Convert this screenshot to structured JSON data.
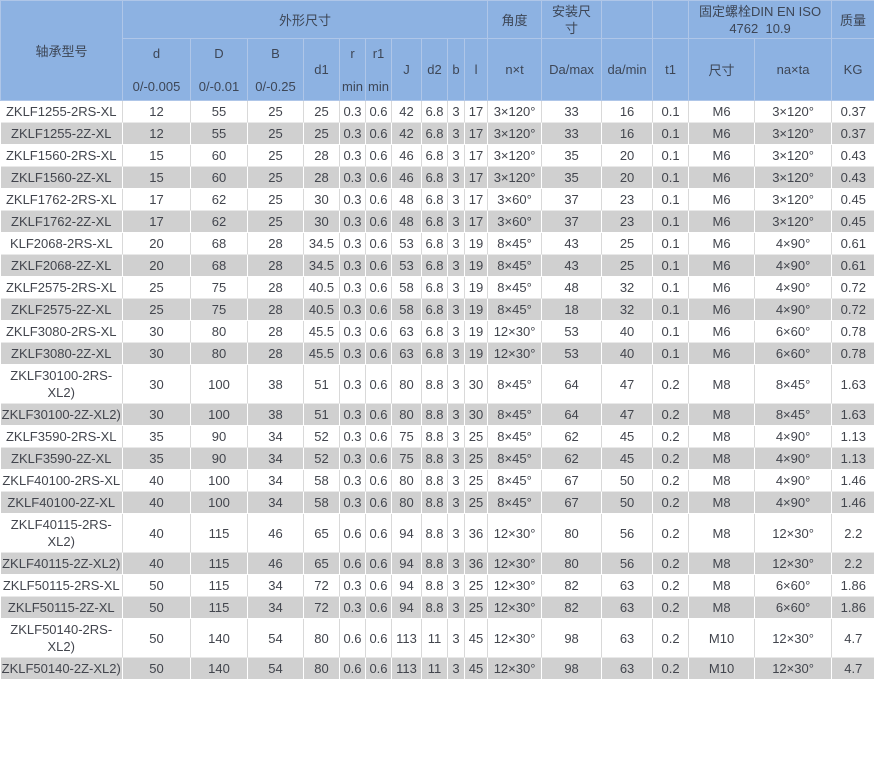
{
  "colors": {
    "header_bg": "#8DB2E2",
    "header_border": "#AFC6E8",
    "row_alt_bg": "#D0D0D0",
    "text": "#42454D"
  },
  "header": {
    "model": "轴承型号",
    "dims_group": "外形尺寸",
    "angle_group": "角度",
    "mount_group": "安装尺寸",
    "bolt_group_line1": "固定螺栓DIN EN ISO",
    "bolt_group_line2": "4762  10.9",
    "mass_group": "质量",
    "d": "d",
    "d_tol": "0/-0.005",
    "D": "D",
    "D_tol": "0/-0.01",
    "B": "B",
    "B_tol": "0/-0.25",
    "d1": "d1",
    "r": "r",
    "r_min": "min",
    "r1": "r1",
    "r1_min": "min",
    "J": "J",
    "d2": "d2",
    "b": "b",
    "l": "l",
    "nxt": "n×t",
    "Da_max": "Da/max",
    "da_min": "da/min",
    "t1": "t1",
    "size": "尺寸",
    "naxta": "na×ta",
    "kg": "KG"
  },
  "rows": [
    {
      "model": "ZKLF1255-2RS-XL",
      "d": "12",
      "D": "55",
      "B": "25",
      "d1": "25",
      "r": "0.3",
      "r1": "0.6",
      "J": "42",
      "d2": "6.8",
      "b": "3",
      "l": "17",
      "nxt": "3×120°",
      "Da_max": "33",
      "da_min": "16",
      "t1": "0.1",
      "size": "M6",
      "naxta": "3×120°",
      "kg": "0.37"
    },
    {
      "model": "ZKLF1255-2Z-XL",
      "d": "12",
      "D": "55",
      "B": "25",
      "d1": "25",
      "r": "0.3",
      "r1": "0.6",
      "J": "42",
      "d2": "6.8",
      "b": "3",
      "l": "17",
      "nxt": "3×120°",
      "Da_max": "33",
      "da_min": "16",
      "t1": "0.1",
      "size": "M6",
      "naxta": "3×120°",
      "kg": "0.37"
    },
    {
      "model": "ZKLF1560-2RS-XL",
      "d": "15",
      "D": "60",
      "B": "25",
      "d1": "28",
      "r": "0.3",
      "r1": "0.6",
      "J": "46",
      "d2": "6.8",
      "b": "3",
      "l": "17",
      "nxt": "3×120°",
      "Da_max": "35",
      "da_min": "20",
      "t1": "0.1",
      "size": "M6",
      "naxta": "3×120°",
      "kg": "0.43"
    },
    {
      "model": "ZKLF1560-2Z-XL",
      "d": "15",
      "D": "60",
      "B": "25",
      "d1": "28",
      "r": "0.3",
      "r1": "0.6",
      "J": "46",
      "d2": "6.8",
      "b": "3",
      "l": "17",
      "nxt": "3×120°",
      "Da_max": "35",
      "da_min": "20",
      "t1": "0.1",
      "size": "M6",
      "naxta": "3×120°",
      "kg": "0.43"
    },
    {
      "model": "ZKLF1762-2RS-XL",
      "d": "17",
      "D": "62",
      "B": "25",
      "d1": "30",
      "r": "0.3",
      "r1": "0.6",
      "J": "48",
      "d2": "6.8",
      "b": "3",
      "l": "17",
      "nxt": "3×60°",
      "Da_max": "37",
      "da_min": "23",
      "t1": "0.1",
      "size": "M6",
      "naxta": "3×120°",
      "kg": "0.45"
    },
    {
      "model": "ZKLF1762-2Z-XL",
      "d": "17",
      "D": "62",
      "B": "25",
      "d1": "30",
      "r": "0.3",
      "r1": "0.6",
      "J": "48",
      "d2": "6.8",
      "b": "3",
      "l": "17",
      "nxt": "3×60°",
      "Da_max": "37",
      "da_min": "23",
      "t1": "0.1",
      "size": "M6",
      "naxta": "3×120°",
      "kg": "0.45"
    },
    {
      "model": "KLF2068-2RS-XL",
      "d": "20",
      "D": "68",
      "B": "28",
      "d1": "34.5",
      "r": "0.3",
      "r1": "0.6",
      "J": "53",
      "d2": "6.8",
      "b": "3",
      "l": "19",
      "nxt": "8×45°",
      "Da_max": "43",
      "da_min": "25",
      "t1": "0.1",
      "size": "M6",
      "naxta": "4×90°",
      "kg": "0.61"
    },
    {
      "model": "ZKLF2068-2Z-XL",
      "d": "20",
      "D": "68",
      "B": "28",
      "d1": "34.5",
      "r": "0.3",
      "r1": "0.6",
      "J": "53",
      "d2": "6.8",
      "b": "3",
      "l": "19",
      "nxt": "8×45°",
      "Da_max": "43",
      "da_min": "25",
      "t1": "0.1",
      "size": "M6",
      "naxta": "4×90°",
      "kg": "0.61"
    },
    {
      "model": "ZKLF2575-2RS-XL",
      "d": "25",
      "D": "75",
      "B": "28",
      "d1": "40.5",
      "r": "0.3",
      "r1": "0.6",
      "J": "58",
      "d2": "6.8",
      "b": "3",
      "l": "19",
      "nxt": "8×45°",
      "Da_max": "48",
      "da_min": "32",
      "t1": "0.1",
      "size": "M6",
      "naxta": "4×90°",
      "kg": "0.72"
    },
    {
      "model": "ZKLF2575-2Z-XL",
      "d": "25",
      "D": "75",
      "B": "28",
      "d1": "40.5",
      "r": "0.3",
      "r1": "0.6",
      "J": "58",
      "d2": "6.8",
      "b": "3",
      "l": "19",
      "nxt": "8×45°",
      "Da_max": "18",
      "da_min": "32",
      "t1": "0.1",
      "size": "M6",
      "naxta": "4×90°",
      "kg": "0.72"
    },
    {
      "model": "ZKLF3080-2RS-XL",
      "d": "30",
      "D": "80",
      "B": "28",
      "d1": "45.5",
      "r": "0.3",
      "r1": "0.6",
      "J": "63",
      "d2": "6.8",
      "b": "3",
      "l": "19",
      "nxt": "12×30°",
      "Da_max": "53",
      "da_min": "40",
      "t1": "0.1",
      "size": "M6",
      "naxta": "6×60°",
      "kg": "0.78"
    },
    {
      "model": "ZKLF3080-2Z-XL",
      "d": "30",
      "D": "80",
      "B": "28",
      "d1": "45.5",
      "r": "0.3",
      "r1": "0.6",
      "J": "63",
      "d2": "6.8",
      "b": "3",
      "l": "19",
      "nxt": "12×30°",
      "Da_max": "53",
      "da_min": "40",
      "t1": "0.1",
      "size": "M6",
      "naxta": "6×60°",
      "kg": "0.78"
    },
    {
      "model": "ZKLF30100-2RS-XL2)",
      "d": "30",
      "D": "100",
      "B": "38",
      "d1": "51",
      "r": "0.3",
      "r1": "0.6",
      "J": "80",
      "d2": "8.8",
      "b": "3",
      "l": "30",
      "nxt": "8×45°",
      "Da_max": "64",
      "da_min": "47",
      "t1": "0.2",
      "size": "M8",
      "naxta": "8×45°",
      "kg": "1.63"
    },
    {
      "model": "ZKLF30100-2Z-XL2)",
      "d": "30",
      "D": "100",
      "B": "38",
      "d1": "51",
      "r": "0.3",
      "r1": "0.6",
      "J": "80",
      "d2": "8.8",
      "b": "3",
      "l": "30",
      "nxt": "8×45°",
      "Da_max": "64",
      "da_min": "47",
      "t1": "0.2",
      "size": "M8",
      "naxta": "8×45°",
      "kg": "1.63"
    },
    {
      "model": "ZKLF3590-2RS-XL",
      "d": "35",
      "D": "90",
      "B": "34",
      "d1": "52",
      "r": "0.3",
      "r1": "0.6",
      "J": "75",
      "d2": "8.8",
      "b": "3",
      "l": "25",
      "nxt": "8×45°",
      "Da_max": "62",
      "da_min": "45",
      "t1": "0.2",
      "size": "M8",
      "naxta": "4×90°",
      "kg": "1.13"
    },
    {
      "model": "ZKLF3590-2Z-XL",
      "d": "35",
      "D": "90",
      "B": "34",
      "d1": "52",
      "r": "0.3",
      "r1": "0.6",
      "J": "75",
      "d2": "8.8",
      "b": "3",
      "l": "25",
      "nxt": "8×45°",
      "Da_max": "62",
      "da_min": "45",
      "t1": "0.2",
      "size": "M8",
      "naxta": "4×90°",
      "kg": "1.13"
    },
    {
      "model": "ZKLF40100-2RS-XL",
      "d": "40",
      "D": "100",
      "B": "34",
      "d1": "58",
      "r": "0.3",
      "r1": "0.6",
      "J": "80",
      "d2": "8.8",
      "b": "3",
      "l": "25",
      "nxt": "8×45°",
      "Da_max": "67",
      "da_min": "50",
      "t1": "0.2",
      "size": "M8",
      "naxta": "4×90°",
      "kg": "1.46"
    },
    {
      "model": "ZKLF40100-2Z-XL",
      "d": "40",
      "D": "100",
      "B": "34",
      "d1": "58",
      "r": "0.3",
      "r1": "0.6",
      "J": "80",
      "d2": "8.8",
      "b": "3",
      "l": "25",
      "nxt": "8×45°",
      "Da_max": "67",
      "da_min": "50",
      "t1": "0.2",
      "size": "M8",
      "naxta": "4×90°",
      "kg": "1.46"
    },
    {
      "model": "ZKLF40115-2RS-XL2)",
      "d": "40",
      "D": "115",
      "B": "46",
      "d1": "65",
      "r": "0.6",
      "r1": "0.6",
      "J": "94",
      "d2": "8.8",
      "b": "3",
      "l": "36",
      "nxt": "12×30°",
      "Da_max": "80",
      "da_min": "56",
      "t1": "0.2",
      "size": "M8",
      "naxta": "12×30°",
      "kg": "2.2"
    },
    {
      "model": "ZKLF40115-2Z-XL2)",
      "d": "40",
      "D": "115",
      "B": "46",
      "d1": "65",
      "r": "0.6",
      "r1": "0.6",
      "J": "94",
      "d2": "8.8",
      "b": "3",
      "l": "36",
      "nxt": "12×30°",
      "Da_max": "80",
      "da_min": "56",
      "t1": "0.2",
      "size": "M8",
      "naxta": "12×30°",
      "kg": "2.2"
    },
    {
      "model": "ZKLF50115-2RS-XL",
      "d": "50",
      "D": "115",
      "B": "34",
      "d1": "72",
      "r": "0.3",
      "r1": "0.6",
      "J": "94",
      "d2": "8.8",
      "b": "3",
      "l": "25",
      "nxt": "12×30°",
      "Da_max": "82",
      "da_min": "63",
      "t1": "0.2",
      "size": "M8",
      "naxta": "6×60°",
      "kg": "1.86"
    },
    {
      "model": "ZKLF50115-2Z-XL",
      "d": "50",
      "D": "115",
      "B": "34",
      "d1": "72",
      "r": "0.3",
      "r1": "0.6",
      "J": "94",
      "d2": "8.8",
      "b": "3",
      "l": "25",
      "nxt": "12×30°",
      "Da_max": "82",
      "da_min": "63",
      "t1": "0.2",
      "size": "M8",
      "naxta": "6×60°",
      "kg": "1.86"
    },
    {
      "model": "ZKLF50140-2RS-XL2)",
      "d": "50",
      "D": "140",
      "B": "54",
      "d1": "80",
      "r": "0.6",
      "r1": "0.6",
      "J": "113",
      "d2": "11",
      "b": "3",
      "l": "45",
      "nxt": "12×30°",
      "Da_max": "98",
      "da_min": "63",
      "t1": "0.2",
      "size": "M10",
      "naxta": "12×30°",
      "kg": "4.7"
    },
    {
      "model": "ZKLF50140-2Z-XL2)",
      "d": "50",
      "D": "140",
      "B": "54",
      "d1": "80",
      "r": "0.6",
      "r1": "0.6",
      "J": "113",
      "d2": "11",
      "b": "3",
      "l": "45",
      "nxt": "12×30°",
      "Da_max": "98",
      "da_min": "63",
      "t1": "0.2",
      "size": "M10",
      "naxta": "12×30°",
      "kg": "4.7"
    }
  ]
}
